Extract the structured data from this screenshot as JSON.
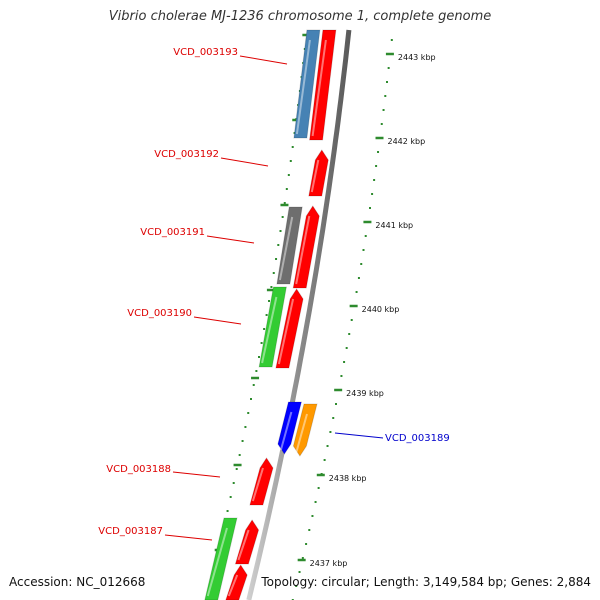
{
  "title": "Vibrio cholerae MJ-1236 chromosome 1, complete genome",
  "footer": {
    "accession": "Accession: NC_012668",
    "summary": "Topology: circular; Length: 3,149,584 bp; Genes: 2,884"
  },
  "colors": {
    "backbone": "#8c8c8c",
    "tick": "#2e8b2e",
    "red_arrow": "#ff0000",
    "steelblue": "#4682b4",
    "gray": "#6e6e6e",
    "green": "#33cc33",
    "blue": "#0000ff",
    "orange": "#ff9900",
    "label_red": "#dd0000",
    "label_blue": "#0000cc"
  },
  "ticks": [
    {
      "label": "2443 kbp",
      "kbp": 2443
    },
    {
      "label": "2442 kbp",
      "kbp": 2442
    },
    {
      "label": "2441 kbp",
      "kbp": 2441
    },
    {
      "label": "2440 kbp",
      "kbp": 2440
    },
    {
      "label": "2439 kbp",
      "kbp": 2439
    },
    {
      "label": "2438 kbp",
      "kbp": 2438
    },
    {
      "label": "2437 kbp",
      "kbp": 2437
    }
  ],
  "genes": [
    {
      "label": "VCD_003193",
      "color": "steelblue",
      "label_color": "label_red"
    },
    {
      "label": "VCD_003192",
      "color": "red_arrow",
      "label_color": "label_red"
    },
    {
      "label": "VCD_003191",
      "color": "gray",
      "label_color": "label_red"
    },
    {
      "label": "VCD_003190",
      "color": "green",
      "label_color": "label_red"
    },
    {
      "label": "VCD_003189",
      "color": "blue",
      "label_color": "label_blue"
    },
    {
      "label": "VCD_003188",
      "color": "red_arrow",
      "label_color": "label_red"
    },
    {
      "label": "VCD_003187",
      "color": "green",
      "label_color": "label_red"
    }
  ]
}
